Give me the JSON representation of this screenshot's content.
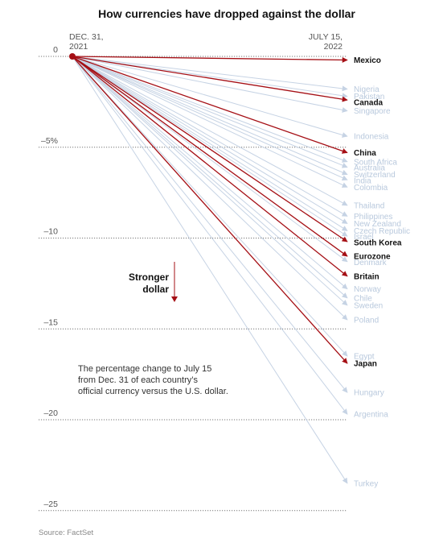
{
  "chart_data": {
    "type": "line",
    "title": "How currencies have dropped against the dollar",
    "start_label": [
      "DEC. 31,",
      "2021"
    ],
    "end_label": [
      "JULY 15,",
      "2022"
    ],
    "x": [
      "Dec. 31, 2021",
      "July 15, 2022"
    ],
    "ylim": [
      -26,
      0
    ],
    "y_ticks": [
      {
        "value": 0,
        "label": "0"
      },
      {
        "value": -5,
        "label": "–5%"
      },
      {
        "value": -10,
        "label": "–10"
      },
      {
        "value": -15,
        "label": "–15"
      },
      {
        "value": -20,
        "label": "–20"
      },
      {
        "value": -25,
        "label": "–25"
      }
    ],
    "highlight_color": "#a50f15",
    "muted_color": "#c6d3e4",
    "series": [
      {
        "name": "Mexico",
        "values": [
          0,
          -0.2
        ],
        "highlight": true
      },
      {
        "name": "Nigeria",
        "values": [
          0,
          -1.8
        ],
        "highlight": false
      },
      {
        "name": "Pakistan",
        "values": [
          0,
          -2.2
        ],
        "highlight": false
      },
      {
        "name": "Canada",
        "values": [
          0,
          -2.4
        ],
        "highlight": true
      },
      {
        "name": "Singapore",
        "values": [
          0,
          -3.0
        ],
        "highlight": false
      },
      {
        "name": "Indonesia",
        "values": [
          0,
          -4.4
        ],
        "highlight": false
      },
      {
        "name": "China",
        "values": [
          0,
          -5.3
        ],
        "highlight": true
      },
      {
        "name": "South Africa",
        "values": [
          0,
          -5.8
        ],
        "highlight": false
      },
      {
        "name": "Australia",
        "values": [
          0,
          -6.1
        ],
        "highlight": false
      },
      {
        "name": "Switzerland",
        "values": [
          0,
          -6.5
        ],
        "highlight": false
      },
      {
        "name": "India",
        "values": [
          0,
          -6.8
        ],
        "highlight": false
      },
      {
        "name": "Colombia",
        "values": [
          0,
          -7.2
        ],
        "highlight": false
      },
      {
        "name": "Thailand",
        "values": [
          0,
          -8.2
        ],
        "highlight": false
      },
      {
        "name": "Philippines",
        "values": [
          0,
          -8.8
        ],
        "highlight": false
      },
      {
        "name": "New Zealand",
        "values": [
          0,
          -9.2
        ],
        "highlight": false
      },
      {
        "name": "Czech Republic",
        "values": [
          0,
          -9.6
        ],
        "highlight": false
      },
      {
        "name": "Israel",
        "values": [
          0,
          -9.9
        ],
        "highlight": false
      },
      {
        "name": "South Korea",
        "values": [
          0,
          -10.2
        ],
        "highlight": true
      },
      {
        "name": "Eurozone",
        "values": [
          0,
          -11.0
        ],
        "highlight": true
      },
      {
        "name": "Denmark",
        "values": [
          0,
          -11.3
        ],
        "highlight": false
      },
      {
        "name": "Britain",
        "values": [
          0,
          -12.1
        ],
        "highlight": true
      },
      {
        "name": "Norway",
        "values": [
          0,
          -12.8
        ],
        "highlight": false
      },
      {
        "name": "Chile",
        "values": [
          0,
          -13.3
        ],
        "highlight": false
      },
      {
        "name": "Sweden",
        "values": [
          0,
          -13.7
        ],
        "highlight": false
      },
      {
        "name": "Poland",
        "values": [
          0,
          -14.5
        ],
        "highlight": false
      },
      {
        "name": "Egypt",
        "values": [
          0,
          -16.5
        ],
        "highlight": false
      },
      {
        "name": "Japan",
        "values": [
          0,
          -16.9
        ],
        "highlight": true
      },
      {
        "name": "Hungary",
        "values": [
          0,
          -18.5
        ],
        "highlight": false
      },
      {
        "name": "Argentina",
        "values": [
          0,
          -19.7
        ],
        "highlight": false
      },
      {
        "name": "Turkey",
        "values": [
          0,
          -23.5
        ],
        "highlight": false
      }
    ]
  },
  "annotation": {
    "lines": [
      "Stronger",
      "dollar"
    ]
  },
  "note": {
    "lines": [
      "The percentage change to July 15",
      "from Dec. 31 of each country’s",
      "official currency versus the U.S. dollar."
    ]
  },
  "source": "Source: FactSet"
}
